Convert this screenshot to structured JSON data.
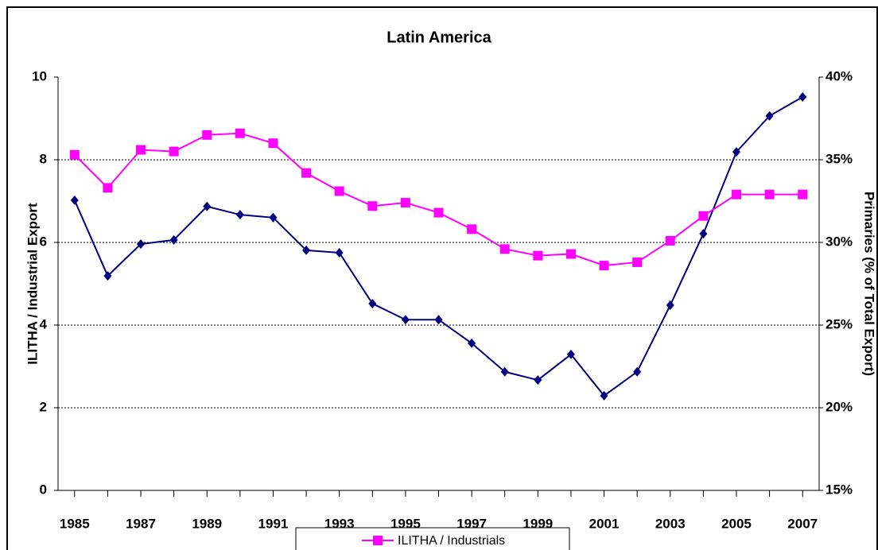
{
  "chart_data": {
    "type": "line",
    "title": "Latin America",
    "y_label": "ILITHA / Industrial Export",
    "y2_label": "Primaries (% of Total Export)",
    "x": [
      1985,
      1986,
      1987,
      1988,
      1989,
      1990,
      1991,
      1992,
      1993,
      1994,
      1995,
      1996,
      1997,
      1998,
      1999,
      2000,
      2001,
      2002,
      2003,
      2004,
      2005,
      2006,
      2007
    ],
    "xlim": [
      1984.5,
      2007.5
    ],
    "xticks": [
      1985,
      1987,
      1989,
      1991,
      1993,
      1995,
      1997,
      1999,
      2001,
      2003,
      2005,
      2007
    ],
    "ylim": [
      0,
      10
    ],
    "yticks": [
      0,
      2,
      4,
      6,
      8,
      10
    ],
    "y2lim": [
      15,
      40
    ],
    "y2ticks": [
      {
        "value": 15,
        "label": "15%"
      },
      {
        "value": 20,
        "label": "20%"
      },
      {
        "value": 25,
        "label": "25%"
      },
      {
        "value": 30,
        "label": "30%"
      },
      {
        "value": 35,
        "label": "35%"
      },
      {
        "value": 40,
        "label": "40%"
      }
    ],
    "grid": true,
    "legend": "bottom",
    "series": [
      {
        "color": "#000080",
        "marker": "diamond",
        "values": [
          7.02,
          5.19,
          5.96,
          6.06,
          6.87,
          6.67,
          6.6,
          5.81,
          5.75,
          4.52,
          4.13,
          4.13,
          3.56,
          2.87,
          2.67,
          3.29,
          2.29,
          2.87,
          4.48,
          6.21,
          8.19,
          9.06,
          9.52
        ]
      },
      {
        "name": "ILITHA / Industrials",
        "color": "#ff00ff",
        "marker": "square",
        "axis": "y2",
        "values": [
          35.3,
          33.3,
          35.6,
          35.5,
          36.5,
          36.6,
          36.0,
          34.2,
          33.1,
          32.2,
          32.4,
          31.8,
          30.8,
          29.6,
          29.2,
          29.3,
          28.6,
          28.8,
          30.1,
          31.6,
          32.9,
          32.9,
          32.9
        ]
      }
    ]
  }
}
